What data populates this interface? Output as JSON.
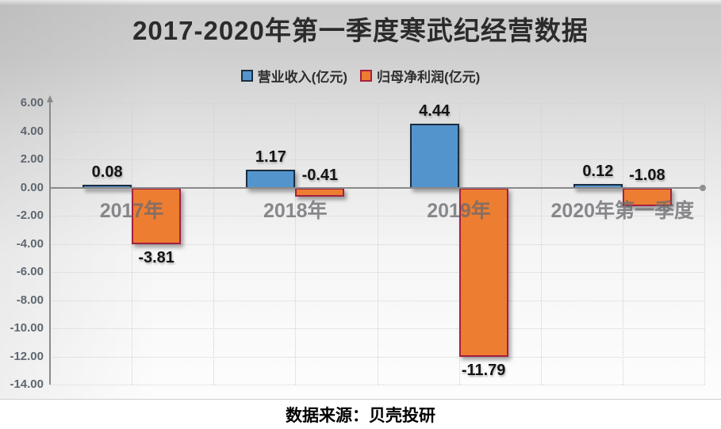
{
  "title": "2017-2020年第一季度寒武纪经营数据",
  "footer": "数据来源：贝壳投研",
  "legend": [
    {
      "label": "营业收入(亿元)"
    },
    {
      "label": "归母净利润(亿元)"
    }
  ],
  "colors": {
    "revenue_fill": "#5494cd",
    "revenue_border": "#1c2e40",
    "profit_fill": "#ed7d31",
    "profit_border": "#a3203f",
    "axis": "#8a8a8a",
    "grid": "#d2d2d2",
    "title_text": "#2b2b2b",
    "category_label": "#6a6a70",
    "value_label": "#141414"
  },
  "chart_data": {
    "type": "bar",
    "categories": [
      "2017年",
      "2018年",
      "2019年",
      "2020年第一季度"
    ],
    "series": [
      {
        "name": "营业收入(亿元)",
        "color": "#5494cd",
        "border": "#1c2e40",
        "values": [
          0.08,
          1.17,
          4.44,
          0.12
        ]
      },
      {
        "name": "归母净利润(亿元)",
        "color": "#ed7d31",
        "border": "#a3203f",
        "values": [
          -3.81,
          -0.41,
          -11.79,
          -1.08
        ]
      }
    ],
    "title": "2017-2020年第一季度寒武纪经营数据",
    "xlabel": "",
    "ylabel": "",
    "ylim": [
      -14,
      6
    ],
    "ytick_step": 2,
    "ytick_labels": [
      "6.00",
      "4.00",
      "2.00",
      "0.00",
      "-2.00",
      "-4.00",
      "-6.00",
      "-8.00",
      "-10.00",
      "-12.00",
      "-14.00"
    ],
    "grid": true,
    "legend_position": "top"
  }
}
